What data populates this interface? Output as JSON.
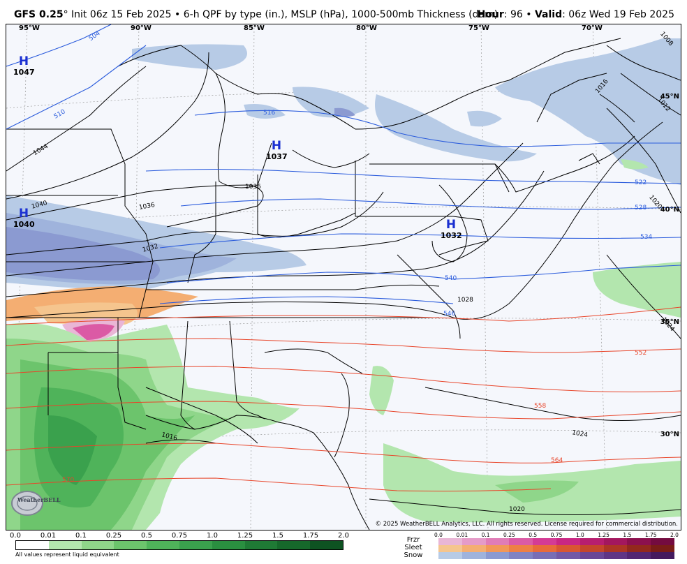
{
  "title": {
    "model": "GFS 0.25",
    "degree": "°",
    "desc": " Init 06z 15 Feb 2025 • 6-h QPF by type (in.), MSLP (hPa), 1000-500mb Thickness (dam)",
    "hour_label": "Hour",
    "hour_value": ": 96",
    "sep": " • ",
    "valid_label": "Valid",
    "valid_value": ": 06z Wed 19 Feb 2025"
  },
  "map": {
    "longitude_labels": [
      "95°W",
      "90°W",
      "85°W",
      "80°W",
      "75°W",
      "70°W"
    ],
    "latitude_labels": [
      "45°N",
      "40°N",
      "35°N",
      "30°N"
    ],
    "pressure_centers": [
      {
        "symbol": "H",
        "value": "1047"
      },
      {
        "symbol": "H",
        "value": "1037"
      },
      {
        "symbol": "H",
        "value": "1040"
      },
      {
        "symbol": "H",
        "value": "1032"
      }
    ],
    "isobar_labels": [
      "1044",
      "1040",
      "1036",
      "1036",
      "1032",
      "1028",
      "1016",
      "1024",
      "1020",
      "1008",
      "1012",
      "1016",
      "1020",
      "1024"
    ],
    "thickness_labels_blue": [
      "504",
      "510",
      "516",
      "522",
      "528",
      "534",
      "540",
      "546"
    ],
    "thickness_labels_red": [
      "552",
      "558",
      "564",
      "570"
    ],
    "copyright": "© 2025 WeatherBELL Analytics, LLC. All rights reserved. License required for commercial distribution.",
    "logo_text": "WeatherBELL"
  },
  "legend": {
    "rain_ticks": [
      "0.0",
      "0.01",
      "0.1",
      "0.25",
      "0.5",
      "0.75",
      "1.0",
      "1.25",
      "1.5",
      "1.75",
      "2.0"
    ],
    "rain_colors": [
      "#ffffff",
      "#b3e6ae",
      "#8fd68a",
      "#6cc46c",
      "#4fb35a",
      "#3aa14d",
      "#2a8f40",
      "#1f7a35",
      "#16682b",
      "#0e5322"
    ],
    "note": "All values represent liquid equivalent",
    "type_labels": [
      "Frzr",
      "Sleet",
      "Snow"
    ],
    "type_ticks": [
      "0.0",
      "0.01",
      "0.1",
      "0.25",
      "0.5",
      "0.75",
      "1.0",
      "1.25",
      "1.5",
      "1.75",
      "2.0"
    ],
    "frzr_colors": [
      "#e9b6d6",
      "#e59bc8",
      "#e07cb7",
      "#db5aa5",
      "#d43b95",
      "#c92783",
      "#b71e6f",
      "#a3175e",
      "#8c104e",
      "#740b40"
    ],
    "sleet_colors": [
      "#f5c58e",
      "#f4ae72",
      "#f29758",
      "#ee7f45",
      "#e86a3a",
      "#d95632",
      "#c5452b",
      "#ad3524",
      "#93281d",
      "#7a1c17"
    ],
    "snow_colors": [
      "#b7cbe6",
      "#9fb3dc",
      "#8b9ad1",
      "#8083c3",
      "#786eb5",
      "#7259a6",
      "#6a4696",
      "#5f3585",
      "#522672",
      "#441a5e"
    ]
  }
}
